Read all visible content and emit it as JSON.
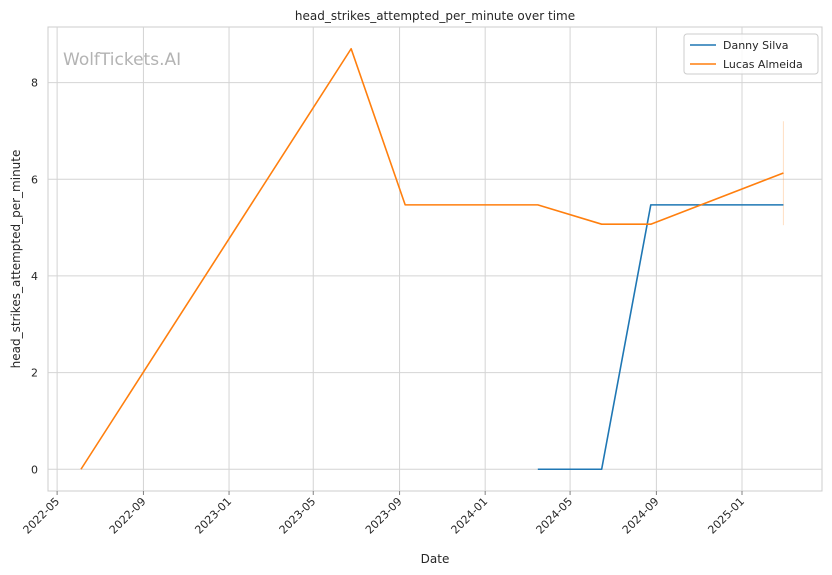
{
  "chart_data": {
    "type": "line",
    "title": "head_strikes_attempted_per_minute over time",
    "xlabel": "Date",
    "ylabel": "head_strikes_attempted_per_minute",
    "watermark": "WolfTickets.AI",
    "grid": true,
    "legend_position": "top-right",
    "xlim": [
      "2022-04-18",
      "2025-04-25"
    ],
    "ylim": [
      -0.45,
      9.15
    ],
    "xticks": [
      "2022-05",
      "2022-09",
      "2023-01",
      "2023-05",
      "2023-09",
      "2024-01",
      "2024-05",
      "2024-09",
      "2025-01"
    ],
    "yticks": [
      0,
      2,
      4,
      6,
      8
    ],
    "series": [
      {
        "name": "Danny Silva",
        "color": "#1f77b4",
        "points": [
          {
            "x": "2024-03-16",
            "y": 0.0
          },
          {
            "x": "2024-06-15",
            "y": 0.0
          },
          {
            "x": "2024-08-24",
            "y": 5.47
          },
          {
            "x": "2025-03-01",
            "y": 5.47
          }
        ]
      },
      {
        "name": "Lucas Almeida",
        "color": "#ff7f0e",
        "points": [
          {
            "x": "2022-06-04",
            "y": 0.0
          },
          {
            "x": "2023-06-24",
            "y": 8.7
          },
          {
            "x": "2023-09-09",
            "y": 5.47
          },
          {
            "x": "2024-03-16",
            "y": 5.47
          },
          {
            "x": "2024-06-15",
            "y": 5.07
          },
          {
            "x": "2024-08-24",
            "y": 5.07
          },
          {
            "x": "2025-03-01",
            "y": 6.13
          }
        ],
        "band": {
          "x": "2025-03-01",
          "y_low": 5.05,
          "y_high": 7.2
        }
      }
    ]
  }
}
